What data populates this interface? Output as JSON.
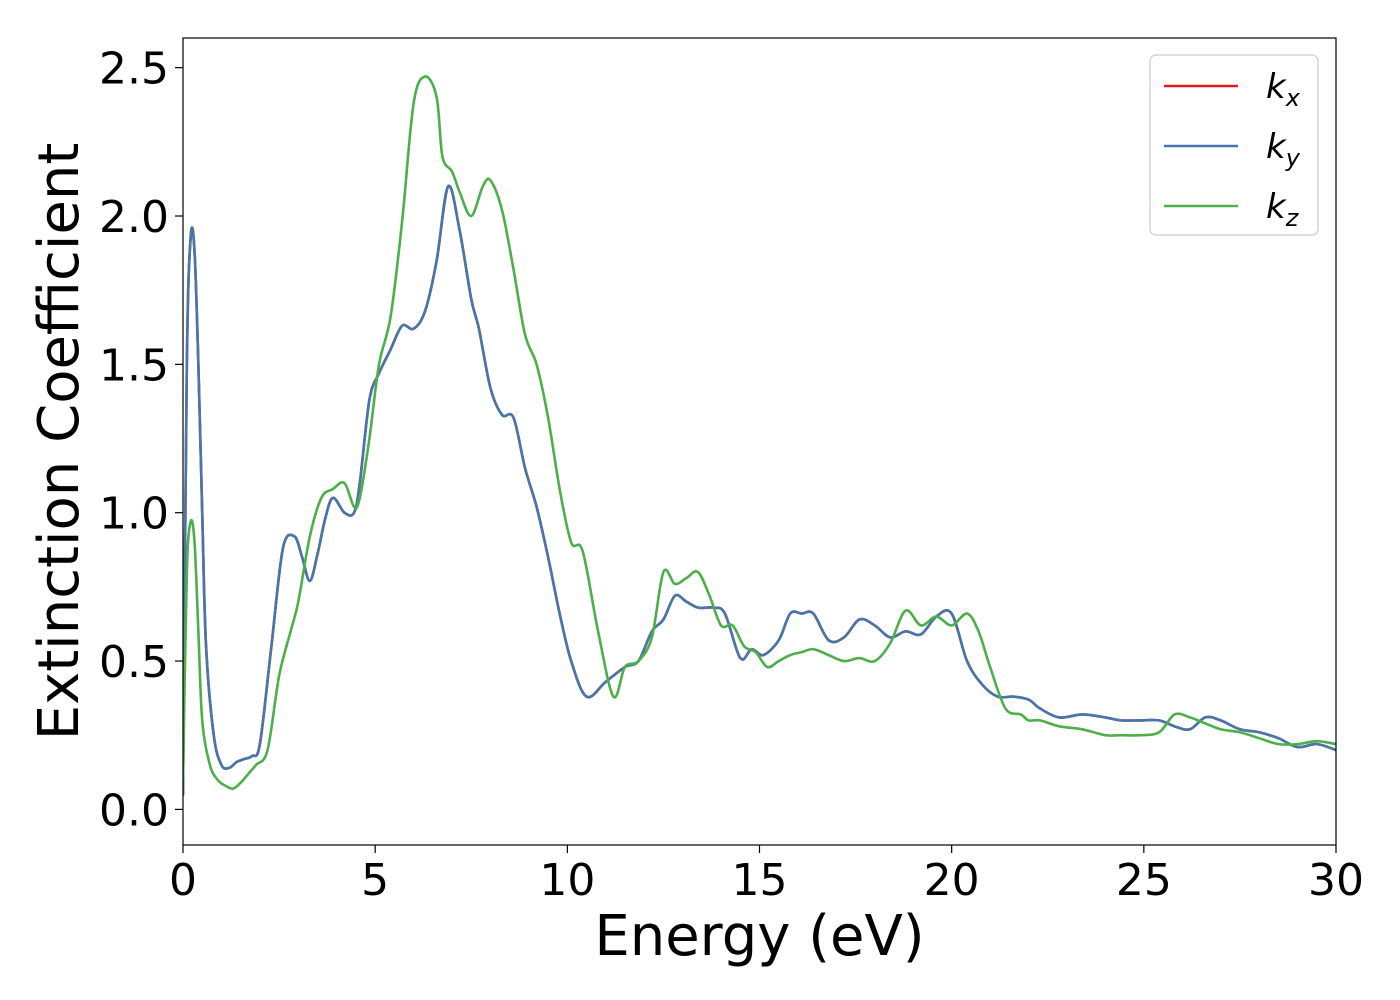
{
  "chart_data": {
    "type": "line",
    "title": "",
    "xlabel": "Energy (eV)",
    "ylabel": "Extinction Coefficient",
    "xlim": [
      0,
      30
    ],
    "ylim": [
      -0.12,
      2.6
    ],
    "xticks": [
      0,
      5,
      10,
      15,
      20,
      25,
      30
    ],
    "xtick_labels": [
      "0",
      "5",
      "10",
      "15",
      "20",
      "25",
      "30"
    ],
    "yticks": [
      0.0,
      0.5,
      1.0,
      1.5,
      2.0,
      2.5
    ],
    "ytick_labels": [
      "0.0",
      "0.5",
      "1.0",
      "1.5",
      "2.0",
      "2.5"
    ],
    "grid": false,
    "legend_position": "top-right",
    "series": [
      {
        "name": "k_x",
        "legend_base": "k",
        "legend_sub": "x",
        "color": "#e41a1c",
        "x": [
          0,
          0.1,
          0.2,
          0.3,
          0.4,
          0.5,
          0.6,
          0.8,
          1.0,
          1.2,
          1.4,
          1.6,
          1.8,
          2.0,
          2.3,
          2.6,
          2.9,
          3.1,
          3.3,
          3.5,
          3.7,
          3.9,
          4.2,
          4.45,
          4.6,
          4.85,
          5.1,
          5.4,
          5.7,
          6.0,
          6.3,
          6.6,
          6.9,
          7.2,
          7.5,
          7.7,
          8.0,
          8.3,
          8.6,
          8.9,
          9.2,
          9.5,
          9.8,
          10.1,
          10.5,
          11.0,
          11.5,
          11.85,
          12.2,
          12.5,
          12.8,
          13.1,
          13.4,
          13.8,
          14.1,
          14.5,
          14.8,
          15.1,
          15.5,
          15.8,
          16.1,
          16.4,
          16.8,
          17.2,
          17.6,
          18.0,
          18.4,
          18.8,
          19.2,
          19.6,
          20.0,
          20.4,
          20.8,
          21.2,
          21.6,
          22.0,
          22.3,
          22.8,
          23.4,
          24.0,
          24.4,
          24.9,
          25.4,
          25.8,
          26.2,
          26.6,
          27.0,
          27.5,
          28.0,
          28.5,
          29.0,
          29.5,
          30.0
        ],
        "y": [
          0.05,
          1.5,
          1.93,
          1.88,
          1.5,
          1.0,
          0.55,
          0.25,
          0.15,
          0.14,
          0.16,
          0.17,
          0.18,
          0.22,
          0.55,
          0.88,
          0.92,
          0.85,
          0.77,
          0.86,
          0.98,
          1.05,
          1.0,
          1.0,
          1.1,
          1.38,
          1.47,
          1.55,
          1.63,
          1.62,
          1.68,
          1.85,
          2.1,
          1.95,
          1.72,
          1.62,
          1.42,
          1.33,
          1.32,
          1.15,
          1.02,
          0.85,
          0.66,
          0.5,
          0.38,
          0.43,
          0.48,
          0.5,
          0.6,
          0.64,
          0.72,
          0.7,
          0.68,
          0.68,
          0.66,
          0.51,
          0.54,
          0.52,
          0.57,
          0.66,
          0.66,
          0.66,
          0.57,
          0.58,
          0.64,
          0.62,
          0.58,
          0.6,
          0.59,
          0.65,
          0.66,
          0.5,
          0.42,
          0.38,
          0.38,
          0.37,
          0.34,
          0.31,
          0.32,
          0.31,
          0.3,
          0.3,
          0.3,
          0.28,
          0.27,
          0.31,
          0.3,
          0.27,
          0.26,
          0.24,
          0.21,
          0.22,
          0.2
        ]
      },
      {
        "name": "k_y",
        "legend_base": "k",
        "legend_sub": "y",
        "color": "#4477aa",
        "x": [
          0,
          0.1,
          0.2,
          0.3,
          0.4,
          0.5,
          0.6,
          0.8,
          1.0,
          1.2,
          1.4,
          1.6,
          1.8,
          2.0,
          2.3,
          2.6,
          2.9,
          3.1,
          3.3,
          3.5,
          3.7,
          3.9,
          4.2,
          4.45,
          4.6,
          4.85,
          5.1,
          5.4,
          5.7,
          6.0,
          6.3,
          6.6,
          6.9,
          7.2,
          7.5,
          7.7,
          8.0,
          8.3,
          8.6,
          8.9,
          9.2,
          9.5,
          9.8,
          10.1,
          10.5,
          11.0,
          11.5,
          11.85,
          12.2,
          12.5,
          12.8,
          13.1,
          13.4,
          13.8,
          14.1,
          14.5,
          14.8,
          15.1,
          15.5,
          15.8,
          16.1,
          16.4,
          16.8,
          17.2,
          17.6,
          18.0,
          18.4,
          18.8,
          19.2,
          19.6,
          20.0,
          20.4,
          20.8,
          21.2,
          21.6,
          22.0,
          22.3,
          22.8,
          23.4,
          24.0,
          24.4,
          24.9,
          25.4,
          25.8,
          26.2,
          26.6,
          27.0,
          27.5,
          28.0,
          28.5,
          29.0,
          29.5,
          30.0
        ],
        "y": [
          0.05,
          1.5,
          1.93,
          1.88,
          1.5,
          1.0,
          0.55,
          0.25,
          0.15,
          0.14,
          0.16,
          0.17,
          0.18,
          0.22,
          0.55,
          0.88,
          0.92,
          0.85,
          0.77,
          0.86,
          0.98,
          1.05,
          1.0,
          1.0,
          1.1,
          1.38,
          1.47,
          1.55,
          1.63,
          1.62,
          1.68,
          1.85,
          2.1,
          1.95,
          1.72,
          1.62,
          1.42,
          1.33,
          1.32,
          1.15,
          1.02,
          0.85,
          0.66,
          0.5,
          0.38,
          0.43,
          0.48,
          0.5,
          0.6,
          0.64,
          0.72,
          0.7,
          0.68,
          0.68,
          0.66,
          0.51,
          0.54,
          0.52,
          0.57,
          0.66,
          0.66,
          0.66,
          0.57,
          0.58,
          0.64,
          0.62,
          0.58,
          0.6,
          0.59,
          0.65,
          0.66,
          0.5,
          0.42,
          0.38,
          0.38,
          0.37,
          0.34,
          0.31,
          0.32,
          0.31,
          0.3,
          0.3,
          0.3,
          0.28,
          0.27,
          0.31,
          0.3,
          0.27,
          0.26,
          0.24,
          0.21,
          0.22,
          0.2
        ]
      },
      {
        "name": "k_z",
        "legend_base": "k",
        "legend_sub": "z",
        "color": "#4daf4a",
        "x": [
          0,
          0.1,
          0.2,
          0.3,
          0.4,
          0.5,
          0.7,
          0.9,
          1.1,
          1.3,
          1.5,
          1.7,
          1.9,
          2.2,
          2.5,
          2.8,
          3.0,
          3.3,
          3.6,
          3.9,
          4.2,
          4.45,
          4.6,
          4.85,
          5.1,
          5.4,
          5.7,
          6.0,
          6.3,
          6.6,
          6.75,
          7.0,
          7.2,
          7.5,
          7.8,
          8.0,
          8.3,
          8.6,
          8.9,
          9.2,
          9.5,
          9.8,
          10.1,
          10.4,
          10.8,
          11.2,
          11.5,
          11.85,
          12.2,
          12.5,
          12.8,
          13.1,
          13.4,
          13.7,
          14.0,
          14.3,
          14.6,
          14.9,
          15.2,
          15.5,
          15.8,
          16.1,
          16.4,
          16.8,
          17.2,
          17.6,
          18.0,
          18.4,
          18.8,
          19.2,
          19.6,
          20.0,
          20.4,
          20.7,
          21.0,
          21.4,
          21.8,
          22.0,
          22.3,
          22.8,
          23.4,
          24.0,
          24.4,
          24.9,
          25.4,
          25.8,
          26.2,
          26.6,
          27.0,
          27.5,
          28.0,
          28.5,
          29.0,
          29.5,
          30.0
        ],
        "y": [
          0.1,
          0.8,
          0.97,
          0.9,
          0.6,
          0.3,
          0.15,
          0.1,
          0.08,
          0.07,
          0.09,
          0.12,
          0.15,
          0.2,
          0.45,
          0.6,
          0.7,
          0.92,
          1.05,
          1.08,
          1.1,
          1.02,
          1.05,
          1.25,
          1.5,
          1.66,
          1.98,
          2.38,
          2.47,
          2.4,
          2.2,
          2.15,
          2.08,
          2.0,
          2.1,
          2.12,
          2.02,
          1.82,
          1.6,
          1.5,
          1.32,
          1.08,
          0.9,
          0.87,
          0.6,
          0.38,
          0.48,
          0.5,
          0.58,
          0.8,
          0.76,
          0.78,
          0.8,
          0.72,
          0.62,
          0.62,
          0.55,
          0.53,
          0.48,
          0.5,
          0.52,
          0.53,
          0.54,
          0.52,
          0.5,
          0.51,
          0.5,
          0.56,
          0.67,
          0.62,
          0.65,
          0.62,
          0.66,
          0.6,
          0.48,
          0.34,
          0.32,
          0.3,
          0.3,
          0.28,
          0.27,
          0.25,
          0.25,
          0.25,
          0.26,
          0.32,
          0.31,
          0.29,
          0.27,
          0.26,
          0.24,
          0.22,
          0.22,
          0.23,
          0.22
        ]
      }
    ]
  }
}
